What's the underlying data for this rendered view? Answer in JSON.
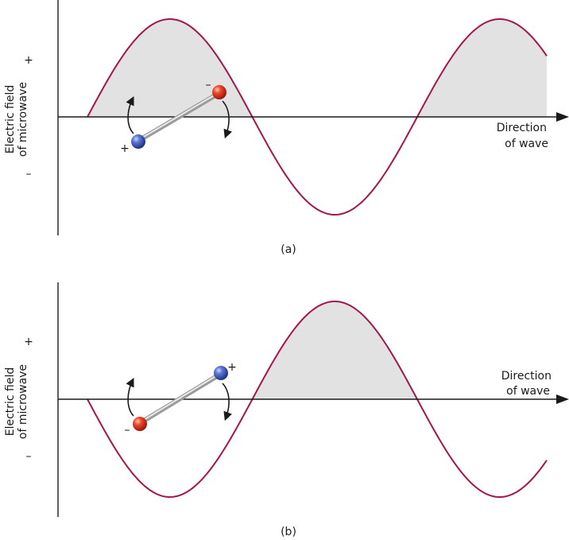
{
  "panels": [
    {
      "caption": "(a)",
      "y_axis_label_line1": "Electric field",
      "y_axis_label_line2": "of microwave",
      "plus_label": "+",
      "minus_label": "–",
      "direction_line1": "Direction",
      "direction_line2": "of wave",
      "dipole_left_charge": "+",
      "dipole_right_charge": "–",
      "dipole_left_color": "#3a56b8",
      "dipole_right_color": "#e0281c"
    },
    {
      "caption": "(b)",
      "y_axis_label_line1": "Electric field",
      "y_axis_label_line2": "of microwave",
      "plus_label": "+",
      "minus_label": "–",
      "direction_line1": "Direction",
      "direction_line2": "of wave",
      "dipole_left_charge": "–",
      "dipole_right_charge": "+",
      "dipole_left_color": "#e0281c",
      "dipole_right_color": "#3a56b8"
    }
  ],
  "colors": {
    "wave": "#a3154f",
    "shade": "#e2e2e2",
    "positive_atom": "#3a56b8",
    "negative_atom": "#e0281c"
  }
}
